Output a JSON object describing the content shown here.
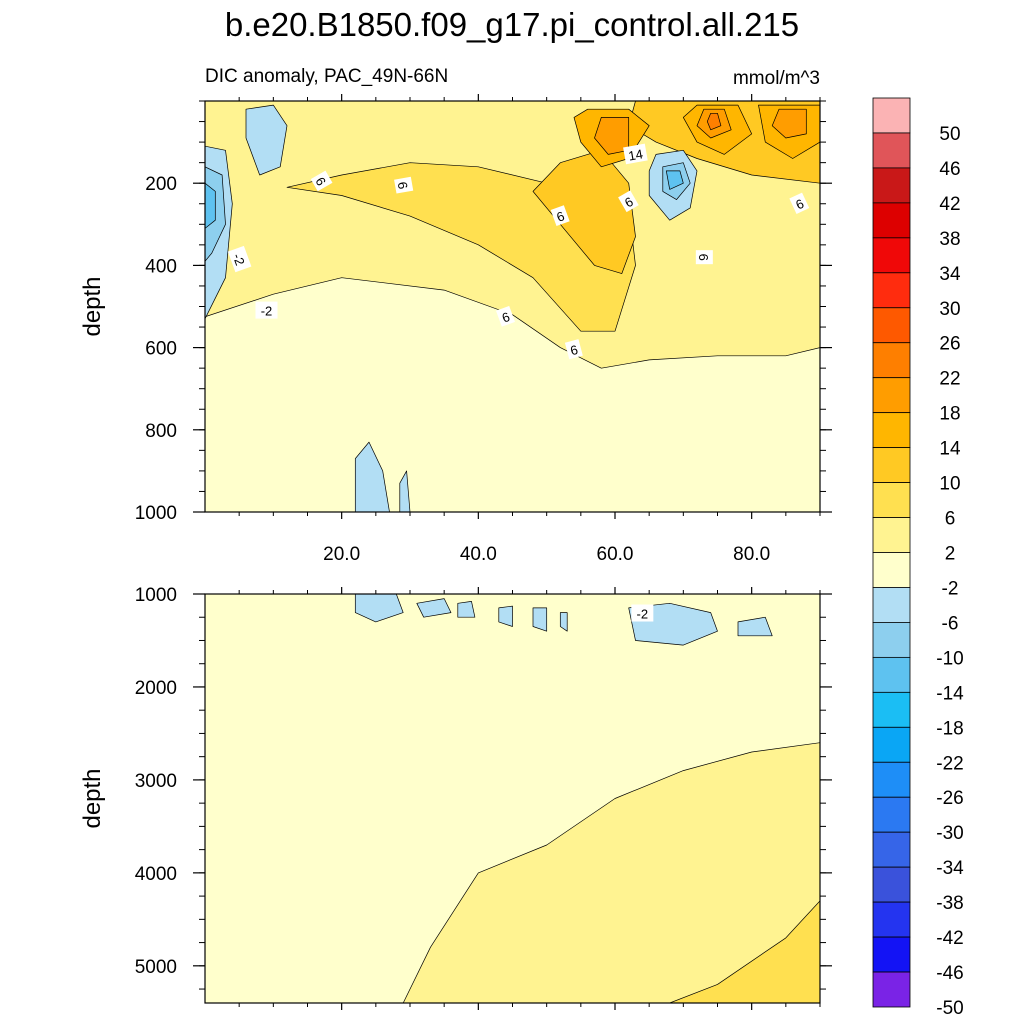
{
  "chart_data": {
    "type": "contour",
    "title": "b.e20.B1850.f09_g17.pi_control.all.215",
    "subtitle": "DIC anomaly, PAC_49N-66N",
    "units": "mmol/m^3",
    "x_range": [
      0,
      90
    ],
    "x_ticks": [
      "20.0",
      "40.0",
      "60.0",
      "80.0"
    ],
    "colorbar_labels": [
      "50",
      "46",
      "42",
      "38",
      "34",
      "30",
      "26",
      "22",
      "18",
      "14",
      "10",
      "6",
      "2",
      "-2",
      "-6",
      "-10",
      "-14",
      "-18",
      "-22",
      "-26",
      "-30",
      "-34",
      "-38",
      "-42",
      "-46",
      "-50"
    ],
    "colorbar_colors": [
      "#FBB3B4",
      "#E05559",
      "#C91818",
      "#DD0000",
      "#F00808",
      "#FF2C0E",
      "#FE5900",
      "#FE7F00",
      "#FF9D00",
      "#FFB600",
      "#FFC923",
      "#FFE050",
      "#FFF391",
      "#FFFFCC",
      "#B2DEF4",
      "#8DCFEE",
      "#5EC2F0",
      "#1BBEF4",
      "#0AA6F5",
      "#1E8EF7",
      "#2B79F2",
      "#3665E8",
      "#3A52DB",
      "#2434F0",
      "#1313F5",
      "#7A23E6"
    ],
    "panels": [
      {
        "name": "upper",
        "ylabel": "depth",
        "y_range": [
          0,
          1000
        ],
        "y_ticks": [
          "200",
          "400",
          "600",
          "800",
          "1000"
        ],
        "contour_labels": [
          "14",
          "6",
          "6",
          "6",
          "6",
          "6",
          "6",
          "6",
          "6",
          "-2",
          "-2"
        ],
        "regions": [
          {
            "level": "2",
            "color": "#FFF391",
            "points": [
              [
                0,
                525
              ],
              [
                10,
                470
              ],
              [
                20,
                430
              ],
              [
                35,
                460
              ],
              [
                45,
                520
              ],
              [
                52,
                600
              ],
              [
                58,
                650
              ],
              [
                65,
                630
              ],
              [
                75,
                620
              ],
              [
                85,
                620
              ],
              [
                90,
                600
              ],
              [
                90,
                0
              ],
              [
                0,
                0
              ]
            ]
          },
          {
            "level": "6",
            "color": "#FFE050",
            "points": [
              [
                12,
                210
              ],
              [
                20,
                230
              ],
              [
                30,
                280
              ],
              [
                40,
                350
              ],
              [
                48,
                430
              ],
              [
                55,
                560
              ],
              [
                60,
                560
              ],
              [
                63,
                400
              ],
              [
                62,
                260
              ],
              [
                58,
                150
              ],
              [
                50,
                200
              ],
              [
                40,
                160
              ],
              [
                30,
                150
              ],
              [
                20,
                180
              ]
            ]
          },
          {
            "level": "10",
            "color": "#FFC923",
            "points": [
              [
                48,
                220
              ],
              [
                52,
                300
              ],
              [
                57,
                400
              ],
              [
                61,
                420
              ],
              [
                63,
                330
              ],
              [
                62,
                200
              ],
              [
                58,
                120
              ],
              [
                52,
                150
              ]
            ]
          },
          {
            "level": "10",
            "color": "#FFC923",
            "points": [
              [
                63,
                0
              ],
              [
                90,
                0
              ],
              [
                90,
                200
              ],
              [
                80,
                180
              ],
              [
                72,
                140
              ],
              [
                66,
                100
              ],
              [
                62,
                60
              ]
            ]
          },
          {
            "level": "14",
            "color": "#FFB600",
            "points": [
              [
                56,
                20
              ],
              [
                62,
                20
              ],
              [
                65,
                60
              ],
              [
                62,
                140
              ],
              [
                58,
                160
              ],
              [
                55,
                100
              ],
              [
                54,
                40
              ]
            ]
          },
          {
            "level": "14",
            "color": "#FFB600",
            "points": [
              [
                72,
                10
              ],
              [
                78,
                10
              ],
              [
                80,
                80
              ],
              [
                76,
                130
              ],
              [
                72,
                100
              ],
              [
                70,
                40
              ]
            ]
          },
          {
            "level": "14",
            "color": "#FFB600",
            "points": [
              [
                81,
                10
              ],
              [
                90,
                10
              ],
              [
                90,
                100
              ],
              [
                86,
                140
              ],
              [
                82,
                100
              ]
            ]
          },
          {
            "level": "18",
            "color": "#FF9D00",
            "points": [
              [
                58,
                40
              ],
              [
                62,
                40
              ],
              [
                62,
                120
              ],
              [
                59,
                130
              ],
              [
                57,
                90
              ]
            ]
          },
          {
            "level": "18",
            "color": "#FF9D00",
            "points": [
              [
                73,
                20
              ],
              [
                76,
                20
              ],
              [
                77,
                70
              ],
              [
                74,
                90
              ],
              [
                72,
                60
              ]
            ]
          },
          {
            "level": "18",
            "color": "#FF9D00",
            "points": [
              [
                84,
                20
              ],
              [
                88,
                20
              ],
              [
                88,
                80
              ],
              [
                85,
                90
              ],
              [
                83,
                60
              ]
            ]
          },
          {
            "level": "22",
            "color": "#FE7F00",
            "points": [
              [
                74,
                30
              ],
              [
                75,
                30
              ],
              [
                75.5,
                60
              ],
              [
                74,
                70
              ],
              [
                73.5,
                50
              ]
            ]
          },
          {
            "level": "-2",
            "color": "#B2DEF4",
            "points": [
              [
                0,
                110
              ],
              [
                3,
                120
              ],
              [
                4,
                250
              ],
              [
                3,
                430
              ],
              [
                0,
                530
              ]
            ]
          },
          {
            "level": "-2",
            "color": "#B2DEF4",
            "points": [
              [
                6,
                20
              ],
              [
                10,
                10
              ],
              [
                12,
                60
              ],
              [
                11,
                160
              ],
              [
                8,
                180
              ],
              [
                6,
                90
              ]
            ]
          },
          {
            "level": "-2",
            "color": "#B2DEF4",
            "points": [
              [
                66,
                130
              ],
              [
                70,
                120
              ],
              [
                72,
                170
              ],
              [
                71,
                260
              ],
              [
                68,
                290
              ],
              [
                65,
                230
              ],
              [
                65,
                170
              ]
            ]
          },
          {
            "level": "-2",
            "color": "#B2DEF4",
            "points": [
              [
                22,
                870
              ],
              [
                24,
                830
              ],
              [
                26,
                900
              ],
              [
                27,
                1000
              ],
              [
                22,
                1000
              ]
            ]
          },
          {
            "level": "-2",
            "color": "#B2DEF4",
            "points": [
              [
                28.5,
                930
              ],
              [
                29.5,
                900
              ],
              [
                30,
                1000
              ],
              [
                28.5,
                1000
              ]
            ]
          },
          {
            "level": "-6",
            "color": "#8DCFEE",
            "points": [
              [
                0,
                160
              ],
              [
                2.5,
                180
              ],
              [
                3,
                300
              ],
              [
                1,
                370
              ],
              [
                0,
                390
              ]
            ]
          },
          {
            "level": "-6",
            "color": "#8DCFEE",
            "points": [
              [
                67,
                160
              ],
              [
                70,
                150
              ],
              [
                71,
                200
              ],
              [
                69,
                240
              ],
              [
                67,
                220
              ]
            ]
          },
          {
            "level": "-10",
            "color": "#5EC2F0",
            "points": [
              [
                0,
                200
              ],
              [
                1.5,
                220
              ],
              [
                1.5,
                290
              ],
              [
                0,
                310
              ]
            ]
          },
          {
            "level": "-10",
            "color": "#5EC2F0",
            "points": [
              [
                67.5,
                170
              ],
              [
                69.5,
                170
              ],
              [
                70,
                200
              ],
              [
                68,
                215
              ]
            ]
          }
        ]
      },
      {
        "name": "lower",
        "ylabel": "depth",
        "y_range": [
          1000,
          5400
        ],
        "y_ticks": [
          "1000",
          "2000",
          "3000",
          "4000",
          "5000"
        ],
        "contour_labels": [
          "-2"
        ],
        "regions": [
          {
            "level": "2",
            "color": "#FFF391",
            "points": [
              [
                29,
                5400
              ],
              [
                33,
                4800
              ],
              [
                40,
                4000
              ],
              [
                50,
                3700
              ],
              [
                60,
                3200
              ],
              [
                70,
                2900
              ],
              [
                80,
                2700
              ],
              [
                90,
                2600
              ],
              [
                90,
                5400
              ]
            ]
          },
          {
            "level": "6",
            "color": "#FFE050",
            "points": [
              [
                68,
                5400
              ],
              [
                75,
                5200
              ],
              [
                85,
                4700
              ],
              [
                90,
                4300
              ],
              [
                90,
                5400
              ]
            ]
          },
          {
            "level": "-2",
            "color": "#B2DEF4",
            "points": [
              [
                22,
                1000
              ],
              [
                28,
                1000
              ],
              [
                29,
                1200
              ],
              [
                25,
                1300
              ],
              [
                22,
                1200
              ]
            ]
          },
          {
            "level": "-2",
            "color": "#B2DEF4",
            "points": [
              [
                31,
                1100
              ],
              [
                35,
                1050
              ],
              [
                36,
                1200
              ],
              [
                32,
                1250
              ]
            ]
          },
          {
            "level": "-2",
            "color": "#B2DEF4",
            "points": [
              [
                37,
                1100
              ],
              [
                39,
                1080
              ],
              [
                39.5,
                1250
              ],
              [
                37,
                1250
              ]
            ]
          },
          {
            "level": "-2",
            "color": "#B2DEF4",
            "points": [
              [
                43,
                1150
              ],
              [
                45,
                1130
              ],
              [
                45,
                1350
              ],
              [
                43,
                1300
              ]
            ]
          },
          {
            "level": "-2",
            "color": "#B2DEF4",
            "points": [
              [
                48,
                1150
              ],
              [
                50,
                1150
              ],
              [
                50,
                1400
              ],
              [
                48,
                1350
              ]
            ]
          },
          {
            "level": "-2",
            "color": "#B2DEF4",
            "points": [
              [
                52,
                1200
              ],
              [
                53,
                1200
              ],
              [
                53,
                1400
              ],
              [
                52,
                1350
              ]
            ]
          },
          {
            "level": "-2",
            "color": "#B2DEF4",
            "points": [
              [
                62,
                1150
              ],
              [
                68,
                1100
              ],
              [
                74,
                1200
              ],
              [
                75,
                1400
              ],
              [
                70,
                1550
              ],
              [
                63,
                1500
              ]
            ]
          },
          {
            "level": "-2",
            "color": "#B2DEF4",
            "points": [
              [
                78,
                1300
              ],
              [
                82,
                1250
              ],
              [
                83,
                1450
              ],
              [
                78,
                1450
              ]
            ]
          }
        ]
      }
    ]
  }
}
